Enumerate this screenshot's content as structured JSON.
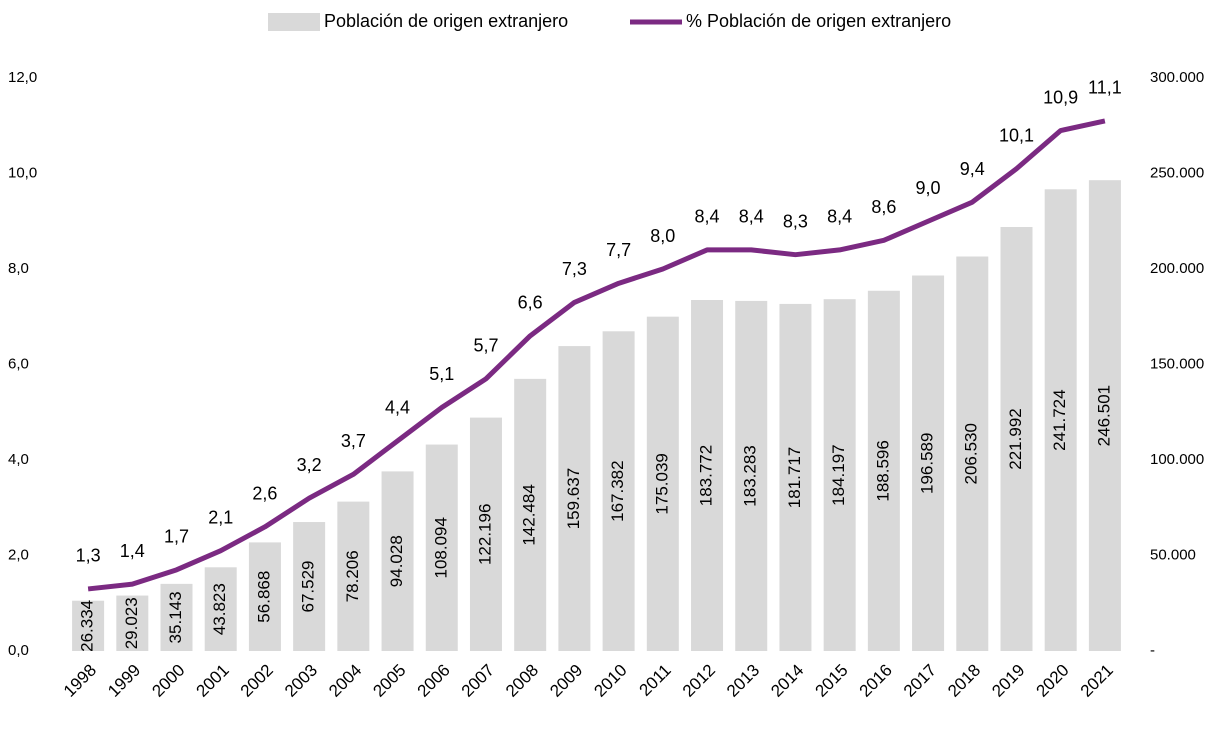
{
  "chart_data": {
    "type": "combo",
    "categories": [
      "1998",
      "1999",
      "2000",
      "2001",
      "2002",
      "2003",
      "2004",
      "2005",
      "2006",
      "2007",
      "2008",
      "2009",
      "2010",
      "2011",
      "2012",
      "2013",
      "2014",
      "2015",
      "2016",
      "2017",
      "2018",
      "2019",
      "2020",
      "2021"
    ],
    "series": [
      {
        "name": "Población de origen extranjero",
        "type": "bar",
        "axis": "y2",
        "color": "#d9d9d9",
        "values": [
          26334,
          29023,
          35143,
          43823,
          56868,
          67529,
          78206,
          94028,
          108094,
          122196,
          142484,
          159637,
          167382,
          175039,
          183772,
          183283,
          181717,
          184197,
          188596,
          196589,
          206530,
          221992,
          241724,
          246501
        ],
        "value_labels": [
          "26.334",
          "29.023",
          "35.143",
          "43.823",
          "56.868",
          "67.529",
          "78.206",
          "94.028",
          "108.094",
          "122.196",
          "142.484",
          "159.637",
          "167.382",
          "175.039",
          "183.772",
          "183.283",
          "181.717",
          "184.197",
          "188.596",
          "196.589",
          "206.530",
          "221.992",
          "241.724",
          "246.501"
        ]
      },
      {
        "name": "% Población de origen extranjero",
        "type": "line",
        "axis": "y",
        "color": "#7b2a82",
        "values": [
          1.3,
          1.4,
          1.7,
          2.1,
          2.6,
          3.2,
          3.7,
          4.4,
          5.1,
          5.7,
          6.6,
          7.3,
          7.7,
          8.0,
          8.4,
          8.4,
          8.3,
          8.4,
          8.6,
          9.0,
          9.4,
          10.1,
          10.9,
          11.1
        ],
        "value_labels": [
          "1,3",
          "1,4",
          "1,7",
          "2,1",
          "2,6",
          "3,2",
          "3,7",
          "4,4",
          "5,1",
          "5,7",
          "6,6",
          "7,3",
          "7,7",
          "8,0",
          "8,4",
          "8,4",
          "8,3",
          "8,4",
          "8,6",
          "9,0",
          "9,4",
          "10,1",
          "10,9",
          "11,1"
        ]
      }
    ],
    "ylim": [
      0,
      12
    ],
    "yticks": [
      {
        "value": 0,
        "label": "0,0"
      },
      {
        "value": 2,
        "label": "2,0"
      },
      {
        "value": 4,
        "label": "4,0"
      },
      {
        "value": 6,
        "label": "6,0"
      },
      {
        "value": 8,
        "label": "8,0"
      },
      {
        "value": 10,
        "label": "10,0"
      },
      {
        "value": 12,
        "label": "12,0"
      }
    ],
    "y2lim": [
      0,
      300000
    ],
    "y2ticks": [
      {
        "value": 0,
        "label": "-"
      },
      {
        "value": 50000,
        "label": "50.000"
      },
      {
        "value": 100000,
        "label": "100.000"
      },
      {
        "value": 150000,
        "label": "150.000"
      },
      {
        "value": 200000,
        "label": "200.000"
      },
      {
        "value": 250000,
        "label": "250.000"
      },
      {
        "value": 300000,
        "label": "300.000"
      }
    ],
    "legend": "top"
  }
}
